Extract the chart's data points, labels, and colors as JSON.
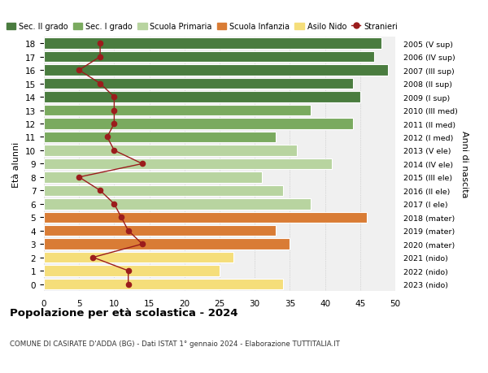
{
  "ages": [
    18,
    17,
    16,
    15,
    14,
    13,
    12,
    11,
    10,
    9,
    8,
    7,
    6,
    5,
    4,
    3,
    2,
    1,
    0
  ],
  "right_labels": [
    "2005 (V sup)",
    "2006 (IV sup)",
    "2007 (III sup)",
    "2008 (II sup)",
    "2009 (I sup)",
    "2010 (III med)",
    "2011 (II med)",
    "2012 (I med)",
    "2013 (V ele)",
    "2014 (IV ele)",
    "2015 (III ele)",
    "2016 (II ele)",
    "2017 (I ele)",
    "2018 (mater)",
    "2019 (mater)",
    "2020 (mater)",
    "2021 (nido)",
    "2022 (nido)",
    "2023 (nido)"
  ],
  "bar_values": [
    48,
    47,
    49,
    44,
    45,
    38,
    44,
    33,
    36,
    41,
    31,
    34,
    38,
    46,
    33,
    35,
    27,
    25,
    34
  ],
  "stranieri": [
    8,
    8,
    5,
    8,
    10,
    10,
    10,
    9,
    10,
    14,
    5,
    8,
    10,
    11,
    12,
    14,
    7,
    12,
    12
  ],
  "bar_colors": [
    "#4a7c3f",
    "#4a7c3f",
    "#4a7c3f",
    "#4a7c3f",
    "#4a7c3f",
    "#7aaa5f",
    "#7aaa5f",
    "#7aaa5f",
    "#b8d4a0",
    "#b8d4a0",
    "#b8d4a0",
    "#b8d4a0",
    "#b8d4a0",
    "#d97c35",
    "#d97c35",
    "#d97c35",
    "#f5de7a",
    "#f5de7a",
    "#f5de7a"
  ],
  "legend_labels": [
    "Sec. II grado",
    "Sec. I grado",
    "Scuola Primaria",
    "Scuola Infanzia",
    "Asilo Nido",
    "Stranieri"
  ],
  "legend_colors": [
    "#4a7c3f",
    "#7aaa5f",
    "#b8d4a0",
    "#d97c35",
    "#f5de7a",
    "#9b1c1c"
  ],
  "stranieri_color": "#9b1c1c",
  "title": "Popolazione per età scolastica - 2024",
  "subtitle": "COMUNE DI CASIRATE D'ADDA (BG) - Dati ISTAT 1° gennaio 2024 - Elaborazione TUTTITALIA.IT",
  "ylabel_left": "Età alunni",
  "ylabel_right": "Anni di nascita",
  "xlim": [
    0,
    50
  ],
  "xticks": [
    0,
    5,
    10,
    15,
    20,
    25,
    30,
    35,
    40,
    45,
    50
  ],
  "bg_color": "#ffffff",
  "bar_bg_color": "#f0f0f0"
}
